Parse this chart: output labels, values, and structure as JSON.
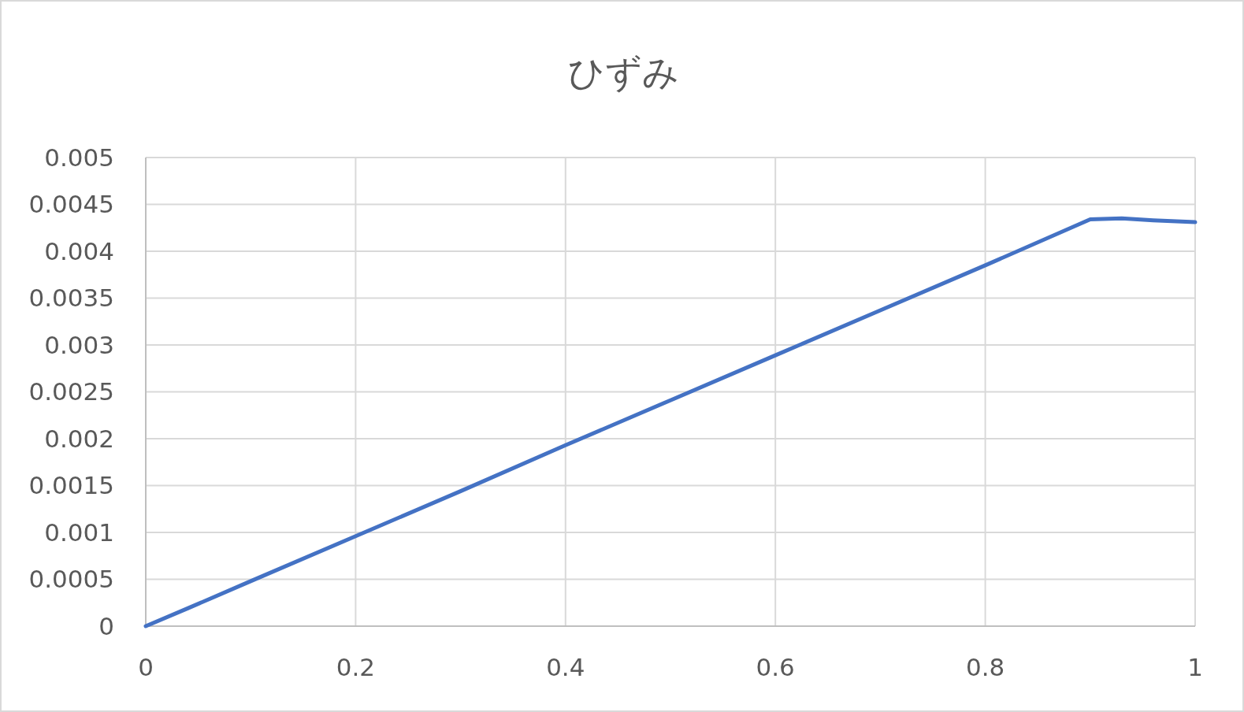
{
  "chart_data": {
    "type": "line",
    "title": "ひずみ",
    "x": [
      0,
      0.04,
      0.1,
      0.2,
      0.3,
      0.4,
      0.5,
      0.6,
      0.7,
      0.8,
      0.9,
      0.93,
      0.96,
      1
    ],
    "series": [
      {
        "color": "#4472c4",
        "values": [
          0,
          0.00019,
          0.00048,
          0.00096,
          0.00144,
          0.00193,
          0.00241,
          0.00289,
          0.00337,
          0.00385,
          0.00434,
          0.00435,
          0.00433,
          0.00431
        ]
      }
    ],
    "xlim": [
      0,
      1
    ],
    "xticks": [
      0,
      0.2,
      0.4,
      0.6,
      0.8,
      1
    ],
    "ylim": [
      0,
      0.005
    ],
    "yticks": [
      0,
      0.0005,
      0.001,
      0.0015,
      0.002,
      0.0025,
      0.003,
      0.0035,
      0.004,
      0.0045,
      0.005
    ],
    "grid": true,
    "marker": "none",
    "line_style": "solid"
  }
}
